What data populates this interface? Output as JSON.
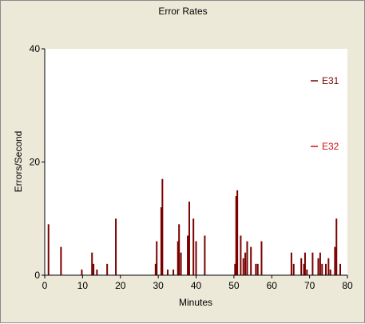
{
  "chart_data": {
    "type": "bar",
    "title": "Error Rates",
    "xlabel": "Minutes",
    "ylabel": "Errors/Second",
    "xlim": [
      0,
      80
    ],
    "ylim": [
      0,
      40
    ],
    "xticks": [
      0,
      10,
      20,
      30,
      40,
      50,
      60,
      70,
      80
    ],
    "yticks": [
      0,
      20,
      40
    ],
    "grid": false,
    "legend_position": "right",
    "series": [
      {
        "name": "E31",
        "color": "#7a0000",
        "points": [
          {
            "x": 1.0,
            "y": 9
          },
          {
            "x": 4.3,
            "y": 5
          },
          {
            "x": 9.8,
            "y": 1
          },
          {
            "x": 12.5,
            "y": 4
          },
          {
            "x": 12.9,
            "y": 2
          },
          {
            "x": 13.8,
            "y": 1
          },
          {
            "x": 16.5,
            "y": 2
          },
          {
            "x": 18.8,
            "y": 10
          },
          {
            "x": 29.3,
            "y": 2
          },
          {
            "x": 29.6,
            "y": 6
          },
          {
            "x": 30.8,
            "y": 12
          },
          {
            "x": 31.1,
            "y": 17
          },
          {
            "x": 32.5,
            "y": 1
          },
          {
            "x": 34.0,
            "y": 1
          },
          {
            "x": 35.2,
            "y": 6
          },
          {
            "x": 35.5,
            "y": 9
          },
          {
            "x": 36.0,
            "y": 4
          },
          {
            "x": 37.8,
            "y": 7
          },
          {
            "x": 38.2,
            "y": 13
          },
          {
            "x": 39.3,
            "y": 10
          },
          {
            "x": 40.0,
            "y": 6
          },
          {
            "x": 42.3,
            "y": 7
          },
          {
            "x": 50.3,
            "y": 2
          },
          {
            "x": 50.6,
            "y": 14
          },
          {
            "x": 50.9,
            "y": 15
          },
          {
            "x": 51.8,
            "y": 7
          },
          {
            "x": 52.5,
            "y": 3
          },
          {
            "x": 53.0,
            "y": 4
          },
          {
            "x": 53.5,
            "y": 6
          },
          {
            "x": 54.5,
            "y": 5
          },
          {
            "x": 55.8,
            "y": 2
          },
          {
            "x": 56.3,
            "y": 2
          },
          {
            "x": 57.3,
            "y": 6
          },
          {
            "x": 65.2,
            "y": 4
          },
          {
            "x": 65.8,
            "y": 2
          },
          {
            "x": 67.8,
            "y": 3
          },
          {
            "x": 68.5,
            "y": 2
          },
          {
            "x": 68.8,
            "y": 4
          },
          {
            "x": 69.3,
            "y": 1
          },
          {
            "x": 70.8,
            "y": 4
          },
          {
            "x": 72.3,
            "y": 3
          },
          {
            "x": 72.8,
            "y": 4
          },
          {
            "x": 73.3,
            "y": 2
          },
          {
            "x": 74.3,
            "y": 2
          },
          {
            "x": 75.0,
            "y": 3
          },
          {
            "x": 75.5,
            "y": 1
          },
          {
            "x": 76.7,
            "y": 5
          },
          {
            "x": 77.1,
            "y": 10
          },
          {
            "x": 78.1,
            "y": 2
          }
        ]
      },
      {
        "name": "E32",
        "color": "#d01010",
        "points": []
      }
    ]
  }
}
